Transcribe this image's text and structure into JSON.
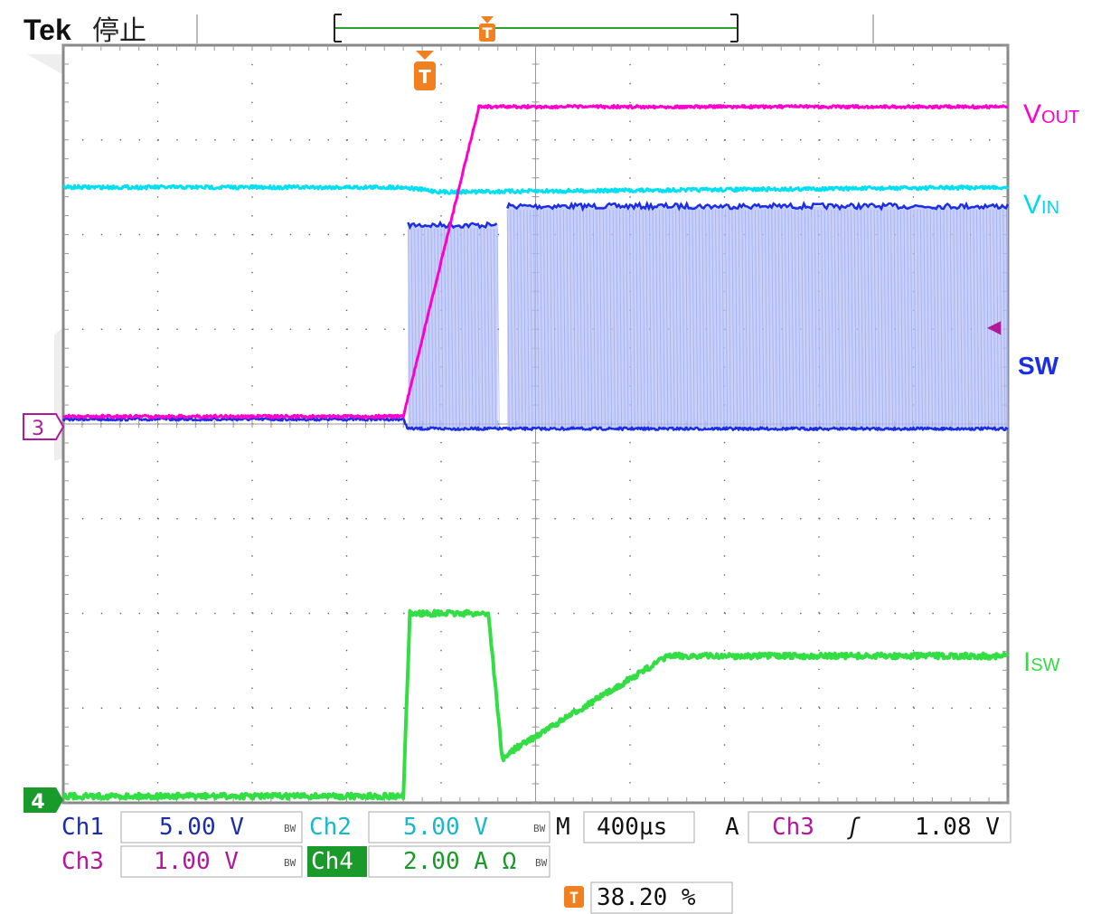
{
  "header": {
    "brand": "Tek",
    "state": "停止",
    "trigger_marker": "T"
  },
  "channels": {
    "vout": {
      "label_main": "V",
      "label_sub": "OUT",
      "color": "#ff00cc"
    },
    "vin": {
      "label_main": "V",
      "label_sub": "IN",
      "color": "#00e0f0"
    },
    "sw": {
      "label_main": "SW",
      "color": "#1a2ee6",
      "fill_color": "#b8c2f6"
    },
    "isw": {
      "label_main": "I",
      "label_sub": "SW",
      "color": "#33dd44"
    }
  },
  "markers": {
    "ch3_ref": "3",
    "ch4_ref": "4",
    "trigger_level_arrow": "◀"
  },
  "readouts": {
    "ch1": {
      "name": "Ch1",
      "value": "5.00 V",
      "bw": "BW",
      "name_color": "#1a2eaa"
    },
    "ch2": {
      "name": "Ch2",
      "value": "5.00 V",
      "bw": "BW",
      "name_color": "#18b8c8"
    },
    "ch3": {
      "name": "Ch3",
      "value": "1.00 V",
      "bw": "BW",
      "name_color": "#b01a9a"
    },
    "ch4": {
      "name": "Ch4",
      "value": "2.00 A Ω",
      "bw": "BW",
      "name_color": "#ffffff",
      "name_bg": "#1a9a2a"
    },
    "timebase": {
      "prefix": "M",
      "value": "400µs"
    },
    "trigger": {
      "prefix": "A",
      "source": "Ch3",
      "edge": "ʃ",
      "level": "1.08 V"
    },
    "trigger_position": {
      "value": "38.20 %"
    }
  },
  "chart_data": {
    "type": "line",
    "grid": true,
    "x_divisions": 10,
    "y_divisions": 8,
    "xlim": [
      0,
      10
    ],
    "ylim": [
      0,
      8
    ],
    "trigger_x": 3.82,
    "series": [
      {
        "name": "VOUT",
        "x": [
          0,
          3.6,
          4.4,
          4.6,
          10
        ],
        "y": [
          4.08,
          4.08,
          7.35,
          7.35,
          7.35
        ]
      },
      {
        "name": "VIN",
        "x": [
          0,
          3.6,
          4.0,
          10
        ],
        "y": [
          6.5,
          6.5,
          6.45,
          6.5
        ]
      },
      {
        "name": "SW",
        "x": [
          0,
          3.6,
          3.65,
          10
        ],
        "y": [
          4.05,
          4.05,
          3.95,
          3.95
        ],
        "high_x": [
          3.65,
          4.6
        ],
        "high_y": 6.1,
        "high2_x": [
          4.7,
          10
        ],
        "high2_y": 6.3
      },
      {
        "name": "ISW",
        "x": [
          0,
          3.6,
          3.67,
          4.5,
          4.65,
          4.75,
          6.4,
          10
        ],
        "y": [
          0.07,
          0.07,
          2.0,
          2.0,
          0.45,
          0.55,
          1.55,
          1.55
        ]
      }
    ]
  }
}
